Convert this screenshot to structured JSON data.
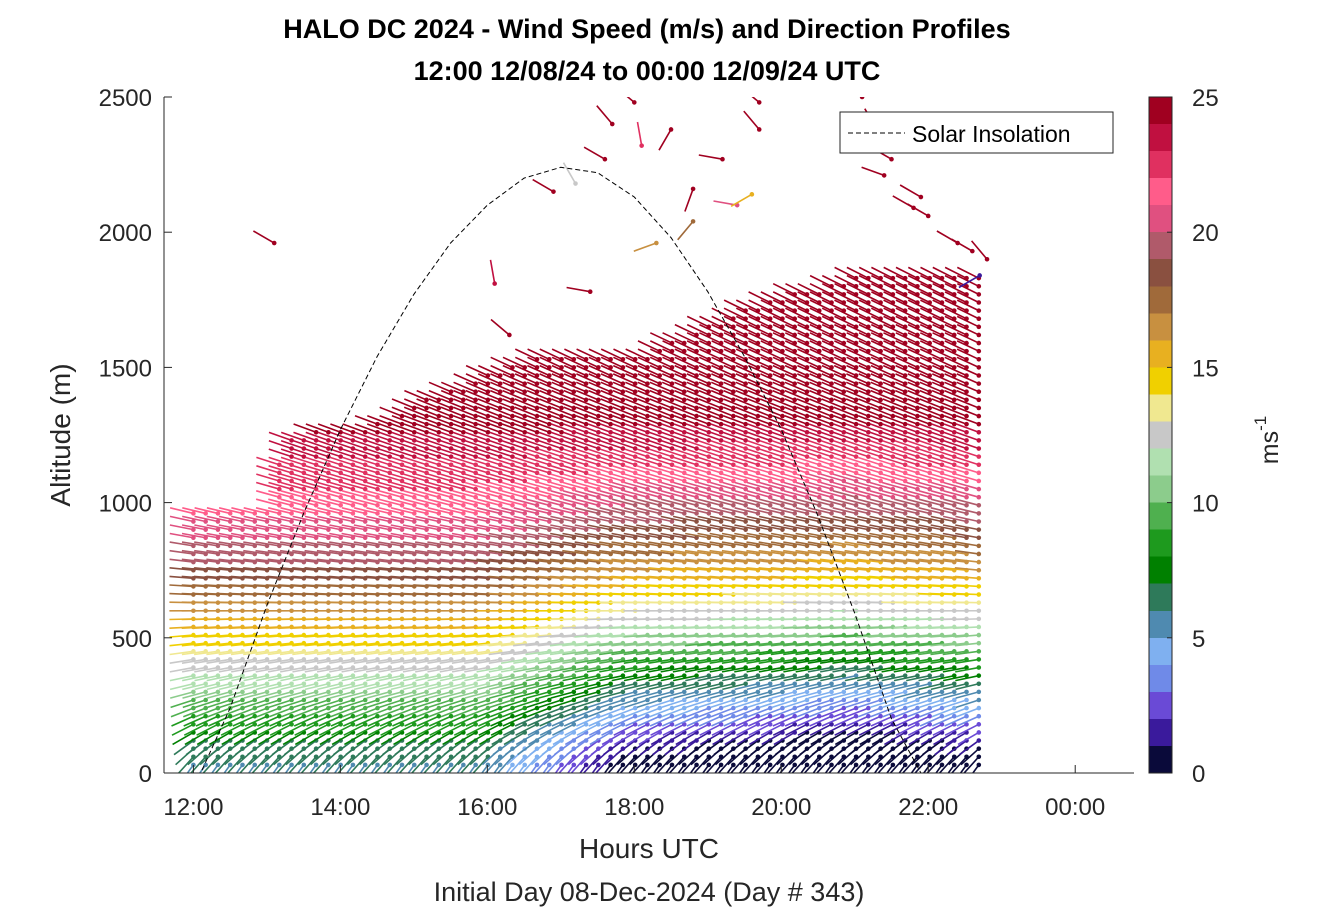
{
  "chart_data": {
    "type": "barb-profile",
    "title": "HALO DC 2024 - Wind Speed (m/s) and Direction Profiles",
    "subtitle": "12:00 12/08/24 to 00:00 12/09/24  UTC",
    "xlabel": "Hours UTC",
    "x_sublabel": "Initial Day 08-Dec-2024 (Day # 343)",
    "ylabel": "Altitude (m)",
    "xlim": [
      11.6,
      24.8
    ],
    "ylim": [
      0,
      2500
    ],
    "x_ticks": [
      12,
      14,
      16,
      18,
      20,
      22,
      24
    ],
    "x_tick_labels": [
      "12:00",
      "14:00",
      "16:00",
      "18:00",
      "20:00",
      "22:00",
      "00:00"
    ],
    "y_ticks": [
      0,
      500,
      1000,
      1500,
      2000,
      2500
    ],
    "y_tick_labels": [
      "0",
      "500",
      "1000",
      "1500",
      "2000",
      "2500"
    ],
    "legend": {
      "entries": [
        "Solar Insolation"
      ],
      "placement": "top-right"
    },
    "colorbar": {
      "label": "ms",
      "label_exponent": "-1",
      "range": [
        0,
        25
      ],
      "ticks": [
        0,
        5,
        10,
        15,
        20,
        25
      ],
      "tick_labels": [
        "0",
        "5",
        "10",
        "15",
        "20",
        "25"
      ],
      "colors": [
        "#0a0a3a",
        "#3a1a9c",
        "#6a4ad6",
        "#6f8ae8",
        "#7fb0f0",
        "#4f8ab0",
        "#2e7a5a",
        "#008000",
        "#1e9a1e",
        "#4fb04f",
        "#8ccc8c",
        "#b0e0b0",
        "#c8c8c8",
        "#f0e890",
        "#f0d000",
        "#e8b020",
        "#c89040",
        "#a06a3a",
        "#8a5040",
        "#b05a6a",
        "#e05080",
        "#ff5c8a",
        "#e03060",
        "#c01040",
        "#a00020"
      ]
    },
    "solar_insolation": {
      "style": "dashed",
      "x": [
        11.6,
        12.1,
        12.5,
        13.0,
        13.5,
        14.0,
        14.5,
        15.0,
        15.5,
        16.0,
        16.5,
        17.0,
        17.5,
        18.0,
        18.5,
        19.0,
        19.5,
        20.0,
        20.5,
        21.0,
        21.5,
        21.9,
        24.8
      ],
      "y": [
        0,
        0,
        240,
        620,
        960,
        1270,
        1540,
        1770,
        1960,
        2100,
        2200,
        2240,
        2220,
        2130,
        1980,
        1780,
        1540,
        1270,
        950,
        590,
        200,
        0,
        0
      ]
    },
    "profiles": {
      "times_start": 12.0,
      "times_end": 22.8,
      "times_step": 0.167,
      "levels_start": 30,
      "levels_step": 30,
      "top_altitude": [
        [
          12.0,
          960
        ],
        [
          13.0,
          960
        ],
        [
          13.25,
          1230
        ],
        [
          13.9,
          1290
        ],
        [
          14.3,
          1260
        ],
        [
          15.0,
          1370
        ],
        [
          15.5,
          1420
        ],
        [
          16.2,
          1490
        ],
        [
          16.8,
          1560
        ],
        [
          17.1,
          1550
        ],
        [
          17.3,
          1550
        ],
        [
          18.3,
          1550
        ],
        [
          18.5,
          1600
        ],
        [
          19.0,
          1650
        ],
        [
          19.6,
          1720
        ],
        [
          20.2,
          1780
        ],
        [
          21.0,
          1830
        ],
        [
          22.0,
          1840
        ],
        [
          22.8,
          1830
        ]
      ],
      "speed_profile": [
        [
          0,
          5.5
        ],
        [
          100,
          6.5
        ],
        [
          200,
          8.5
        ],
        [
          350,
          11.5
        ],
        [
          500,
          14.5
        ],
        [
          700,
          18.0
        ],
        [
          900,
          20.5
        ],
        [
          1100,
          22.5
        ],
        [
          1300,
          24.5
        ],
        [
          2000,
          25.0
        ]
      ],
      "speed_day_adjust": [
        [
          12.0,
          0
        ],
        [
          16.0,
          0
        ],
        [
          17.0,
          -3
        ],
        [
          18.0,
          -6
        ],
        [
          20.0,
          -7
        ],
        [
          21.0,
          -8
        ],
        [
          22.8,
          -6
        ]
      ],
      "direction_deg": [
        [
          0,
          210
        ],
        [
          150,
          240
        ],
        [
          300,
          255
        ],
        [
          600,
          270
        ],
        [
          1000,
          285
        ],
        [
          1500,
          295
        ],
        [
          2500,
          300
        ]
      ]
    },
    "scattered_upper_barbs": [
      [
        13.1,
        1960,
        24.5,
        300
      ],
      [
        16.1,
        1810,
        23.5,
        350
      ],
      [
        16.3,
        1620,
        24.0,
        310
      ],
      [
        16.9,
        2150,
        24.5,
        300
      ],
      [
        17.4,
        1780,
        24.5,
        280
      ],
      [
        17.2,
        2180,
        12.0,
        330
      ],
      [
        17.6,
        2270,
        24.5,
        300
      ],
      [
        17.7,
        2400,
        24.5,
        320
      ],
      [
        18.0,
        2480,
        24.5,
        310
      ],
      [
        18.1,
        2320,
        22.5,
        350
      ],
      [
        18.5,
        2380,
        24.5,
        210
      ],
      [
        18.8,
        2040,
        17.0,
        220
      ],
      [
        18.3,
        1960,
        16.5,
        250
      ],
      [
        18.8,
        2160,
        24.5,
        200
      ],
      [
        19.2,
        2270,
        24.5,
        280
      ],
      [
        19.4,
        2100,
        20.5,
        280
      ],
      [
        19.6,
        2140,
        15.0,
        240
      ],
      [
        19.7,
        2380,
        24.5,
        320
      ],
      [
        19.7,
        2480,
        24.5,
        310
      ],
      [
        21.1,
        2500,
        24.5,
        320
      ],
      [
        21.3,
        2380,
        24.5,
        330
      ],
      [
        21.4,
        2210,
        24.5,
        290
      ],
      [
        21.5,
        2270,
        24.5,
        300
      ],
      [
        21.8,
        2090,
        24.5,
        300
      ],
      [
        21.9,
        2130,
        24.5,
        300
      ],
      [
        22.0,
        2060,
        24.5,
        300
      ],
      [
        22.4,
        1960,
        24.5,
        300
      ],
      [
        22.6,
        1930,
        24.5,
        300
      ],
      [
        22.8,
        1900,
        24.5,
        320
      ],
      [
        22.7,
        1840,
        1.5,
        240
      ]
    ]
  }
}
